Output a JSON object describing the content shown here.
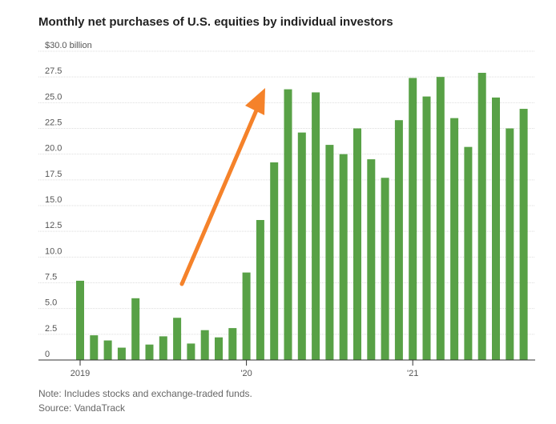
{
  "chart_data": {
    "type": "bar",
    "title": "Monthly net purchases of U.S. equities by individual investors",
    "categories": [
      "2019",
      null,
      null,
      null,
      null,
      null,
      null,
      null,
      null,
      null,
      null,
      null,
      "'20",
      null,
      null,
      null,
      null,
      null,
      null,
      null,
      null,
      null,
      null,
      null,
      "'21",
      null,
      null,
      null,
      null,
      null,
      null,
      null,
      null
    ],
    "values": [
      7.7,
      2.4,
      1.9,
      1.2,
      6.0,
      1.5,
      2.3,
      4.1,
      1.6,
      2.9,
      2.2,
      3.1,
      8.5,
      13.6,
      19.2,
      26.3,
      22.1,
      26.0,
      20.9,
      20.0,
      22.5,
      19.5,
      17.7,
      23.3,
      27.4,
      25.6,
      27.5,
      23.5,
      20.7,
      27.9,
      25.5,
      22.5,
      24.4
    ],
    "color": "#58a146",
    "ylim": [
      0,
      30
    ],
    "yticks": [
      0,
      2.5,
      {
        "value": 5,
        "label": "5.0"
      },
      7.5,
      {
        "value": 10,
        "label": "10.0"
      },
      12.5,
      {
        "value": 15,
        "label": "15.0"
      },
      17.5,
      {
        "value": 20,
        "label": "20.0"
      },
      22.5,
      {
        "value": 25,
        "label": "25.0"
      },
      27.5,
      {
        "value": 30,
        "label": "$30.0 billion"
      }
    ],
    "grid": true,
    "note": "Note: Includes stocks and exchange-traded funds.",
    "source": "Source: VandaTrack"
  }
}
